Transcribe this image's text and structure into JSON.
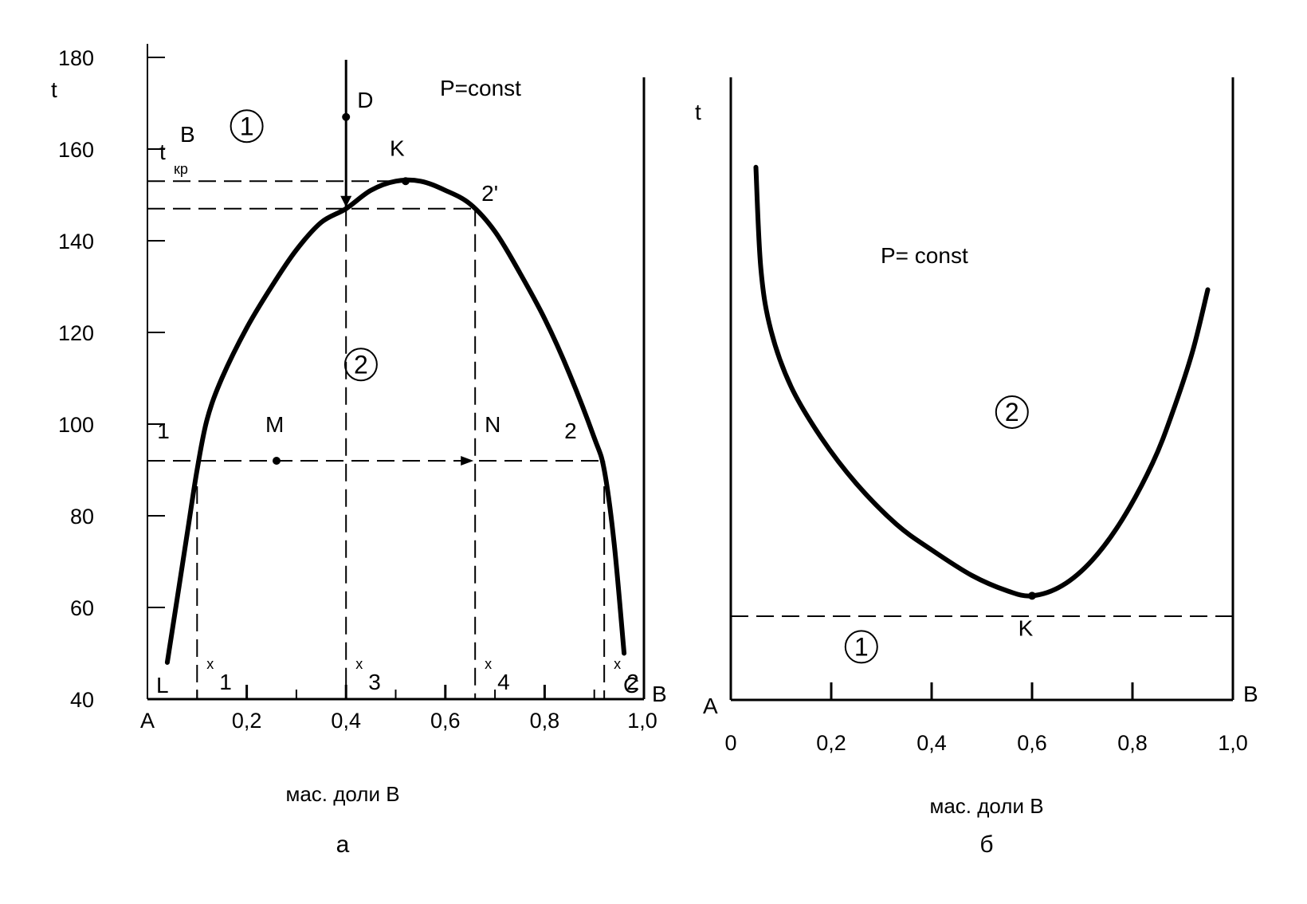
{
  "chart_data": [
    {
      "panel": "а",
      "type": "line",
      "title": "",
      "annotation": "P=const",
      "xlabel": "мас. доли В",
      "ylabel": "t",
      "xlim": [
        0,
        1
      ],
      "ylim": [
        40,
        180
      ],
      "x_tick_labels": [
        "A",
        "0,2",
        "0,4",
        "0,6",
        "0,8",
        "1,0"
      ],
      "y_tick_labels": [
        "40",
        "60",
        "80",
        "100",
        "120",
        "140",
        "160",
        "180"
      ],
      "y_tick_values": [
        40,
        60,
        80,
        100,
        120,
        140,
        160,
        180
      ],
      "curve": {
        "x": [
          0.04,
          0.06,
          0.08,
          0.1,
          0.12,
          0.15,
          0.2,
          0.25,
          0.3,
          0.35,
          0.4,
          0.45,
          0.5,
          0.55,
          0.6,
          0.65,
          0.7,
          0.75,
          0.8,
          0.85,
          0.9,
          0.92,
          0.94,
          0.96
        ],
        "y": [
          48,
          62,
          76,
          90,
          101,
          110,
          121,
          130,
          138,
          144,
          147,
          151,
          153,
          153,
          151,
          148,
          142,
          133,
          123,
          111,
          97,
          90,
          74,
          50
        ]
      },
      "critical_temperature": 153,
      "tie_line_temperature": 92,
      "upper_tie_temperature": 147,
      "points": [
        {
          "label": "D",
          "x": 0.4,
          "y": 167
        },
        {
          "label": "K",
          "x": 0.52,
          "y": 153
        },
        {
          "label": "M",
          "x": 0.26,
          "y": 92
        },
        {
          "label": "N",
          "x": 0.66,
          "y": 92
        },
        {
          "label": "1",
          "x": 0.1,
          "y": 92
        },
        {
          "label": "2",
          "x": 0.92,
          "y": 92
        },
        {
          "label": "2'",
          "x": 0.66,
          "y": 147
        }
      ],
      "tcrit_label": "t",
      "tcrit_sub": "кр",
      "tcrit_b_label": "В",
      "verticals": [
        {
          "label": "x",
          "sub": "1",
          "x": 0.1
        },
        {
          "label": "x",
          "sub": "3",
          "x": 0.4
        },
        {
          "label": "x",
          "sub": "4",
          "x": 0.66
        },
        {
          "label": "x",
          "sub": "2",
          "x": 0.92
        }
      ],
      "corner_left": "L",
      "corner_right": "C",
      "axis_right_label": "В",
      "regions": [
        {
          "label": "1",
          "x": 0.2,
          "y": 165
        },
        {
          "label": "2",
          "x": 0.43,
          "y": 113
        }
      ],
      "caption": "а"
    },
    {
      "panel": "б",
      "type": "line",
      "title": "",
      "annotation": "P= const",
      "xlabel": "мас. доли В",
      "ylabel": "t",
      "xlim": [
        0,
        1
      ],
      "x_tick_labels": [
        "0",
        "0,2",
        "0,4",
        "0,6",
        "0,8",
        "1,0"
      ],
      "curve": {
        "x": [
          0.05,
          0.06,
          0.08,
          0.12,
          0.18,
          0.25,
          0.33,
          0.4,
          0.48,
          0.55,
          0.6,
          0.66,
          0.72,
          0.78,
          0.84,
          0.88,
          0.92,
          0.95
        ],
        "y": [
          0.88,
          0.68,
          0.56,
          0.45,
          0.35,
          0.26,
          0.18,
          0.13,
          0.08,
          0.05,
          0.04,
          0.06,
          0.11,
          0.19,
          0.3,
          0.4,
          0.52,
          0.64
        ]
      },
      "critical_point": {
        "label": "K",
        "x": 0.6,
        "y": 0.04
      },
      "axis_left_label": "A",
      "axis_right_label": "В",
      "regions": [
        {
          "label": "2",
          "x": 0.56,
          "y": 0.4
        },
        {
          "label": "1",
          "x": 0.26,
          "y": -0.06
        }
      ],
      "caption": "б"
    }
  ]
}
